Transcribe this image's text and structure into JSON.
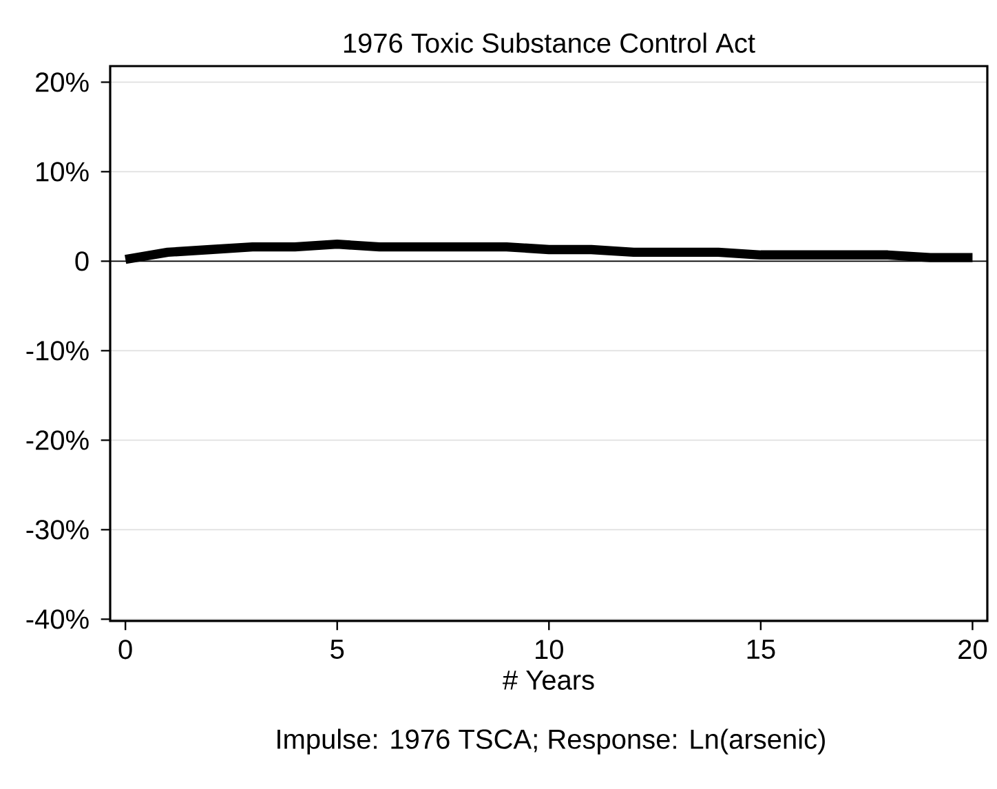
{
  "chart_data": {
    "type": "line",
    "title": "1976 Toxic Substance Control Act",
    "xlabel": "# Years",
    "annotations": [
      "Impulse: 1976 TSCA; Response: Ln(arsenic)"
    ],
    "x": [
      0,
      1,
      2,
      3,
      4,
      5,
      6,
      7,
      8,
      9,
      10,
      11,
      12,
      13,
      14,
      15,
      16,
      17,
      18,
      19,
      20
    ],
    "series": [
      {
        "color": "#000000",
        "values": [
          0.2,
          1.0,
          1.3,
          1.6,
          1.6,
          1.9,
          1.6,
          1.6,
          1.6,
          1.6,
          1.3,
          1.3,
          1.0,
          1.0,
          1.0,
          0.7,
          0.7,
          0.7,
          0.7,
          0.4,
          0.4
        ]
      }
    ],
    "xlim": [
      -0.36,
      20.35
    ],
    "ylim": [
      -40.2,
      21.8
    ],
    "xticks": [
      0,
      5,
      10,
      15,
      20
    ],
    "yticks": [
      {
        "value": -40,
        "label": "-40%"
      },
      {
        "value": -30,
        "label": "-30%"
      },
      {
        "value": -20,
        "label": "-20%"
      },
      {
        "value": -10,
        "label": "-10%"
      },
      0,
      {
        "value": 10,
        "label": "10%"
      },
      {
        "value": 20,
        "label": "20%"
      }
    ],
    "grid": "y",
    "marker": "none",
    "line_style": "solid",
    "ref_lines": [
      {
        "axis": "y",
        "value": 0,
        "color": "#000000"
      }
    ]
  }
}
